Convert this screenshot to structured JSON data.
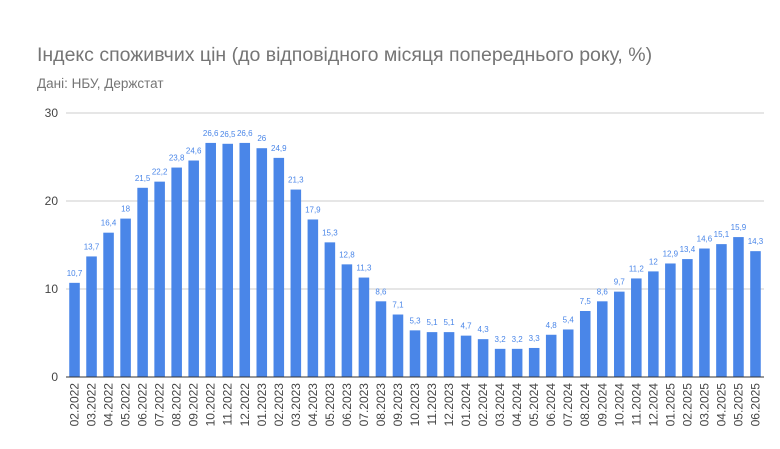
{
  "colors": {
    "bar": "#4a86e8",
    "grid": "#cccccc",
    "axis": "#333333",
    "text": "#757575"
  },
  "chart_data": {
    "type": "bar",
    "title": "Індекс споживчих цін (до відповідного місяця попереднього року, %)",
    "subtitle": "Дані: НБУ, Держстат",
    "ylim": [
      0,
      30
    ],
    "yticks": [
      0,
      10,
      20,
      30
    ],
    "grid": true,
    "legend": "none",
    "categories": [
      "02.2022",
      "03.2022",
      "04.2022",
      "05.2022",
      "06.2022",
      "07.2022",
      "08.2022",
      "09.2022",
      "10.2022",
      "11.2022",
      "12.2022",
      "01.2023",
      "02.2023",
      "03.2023",
      "04.2023",
      "05.2023",
      "06.2023",
      "07.2023",
      "08.2023",
      "09.2023",
      "10.2023",
      "11.2023",
      "12.2023",
      "01.2024",
      "02.2024",
      "03.2024",
      "04.2024",
      "05.2024",
      "06.2024",
      "07.2024",
      "08.2024",
      "09.2024",
      "10.2024",
      "11.2024",
      "12.2024",
      "01.2025",
      "02.2025",
      "03.2025",
      "04.2025",
      "05.2025",
      "06.2025"
    ],
    "values": [
      10.7,
      13.7,
      16.4,
      18,
      21.5,
      22.2,
      23.8,
      24.6,
      26.6,
      26.5,
      26.6,
      26,
      24.9,
      21.3,
      17.9,
      15.3,
      12.8,
      11.3,
      8.6,
      7.1,
      5.3,
      5.1,
      5.1,
      4.7,
      4.3,
      3.2,
      3.2,
      3.3,
      4.8,
      5.4,
      7.5,
      8.6,
      9.7,
      11.2,
      12,
      12.9,
      13.4,
      14.6,
      15.1,
      15.9,
      14.3
    ],
    "data_labels": [
      "10,7",
      "13,7",
      "16,4",
      "18",
      "21,5",
      "22,2",
      "23,8",
      "24,6",
      "26,6",
      "26,5",
      "26,6",
      "26",
      "24,9",
      "21,3",
      "17,9",
      "15,3",
      "12,8",
      "11,3",
      "8,6",
      "7,1",
      "5,3",
      "5,1",
      "5,1",
      "4,7",
      "4,3",
      "3,2",
      "3,2",
      "3,3",
      "4,8",
      "5,4",
      "7,5",
      "8,6",
      "9,7",
      "11,2",
      "12",
      "12,9",
      "13,4",
      "14,6",
      "15,1",
      "15,9",
      "14,3"
    ]
  }
}
